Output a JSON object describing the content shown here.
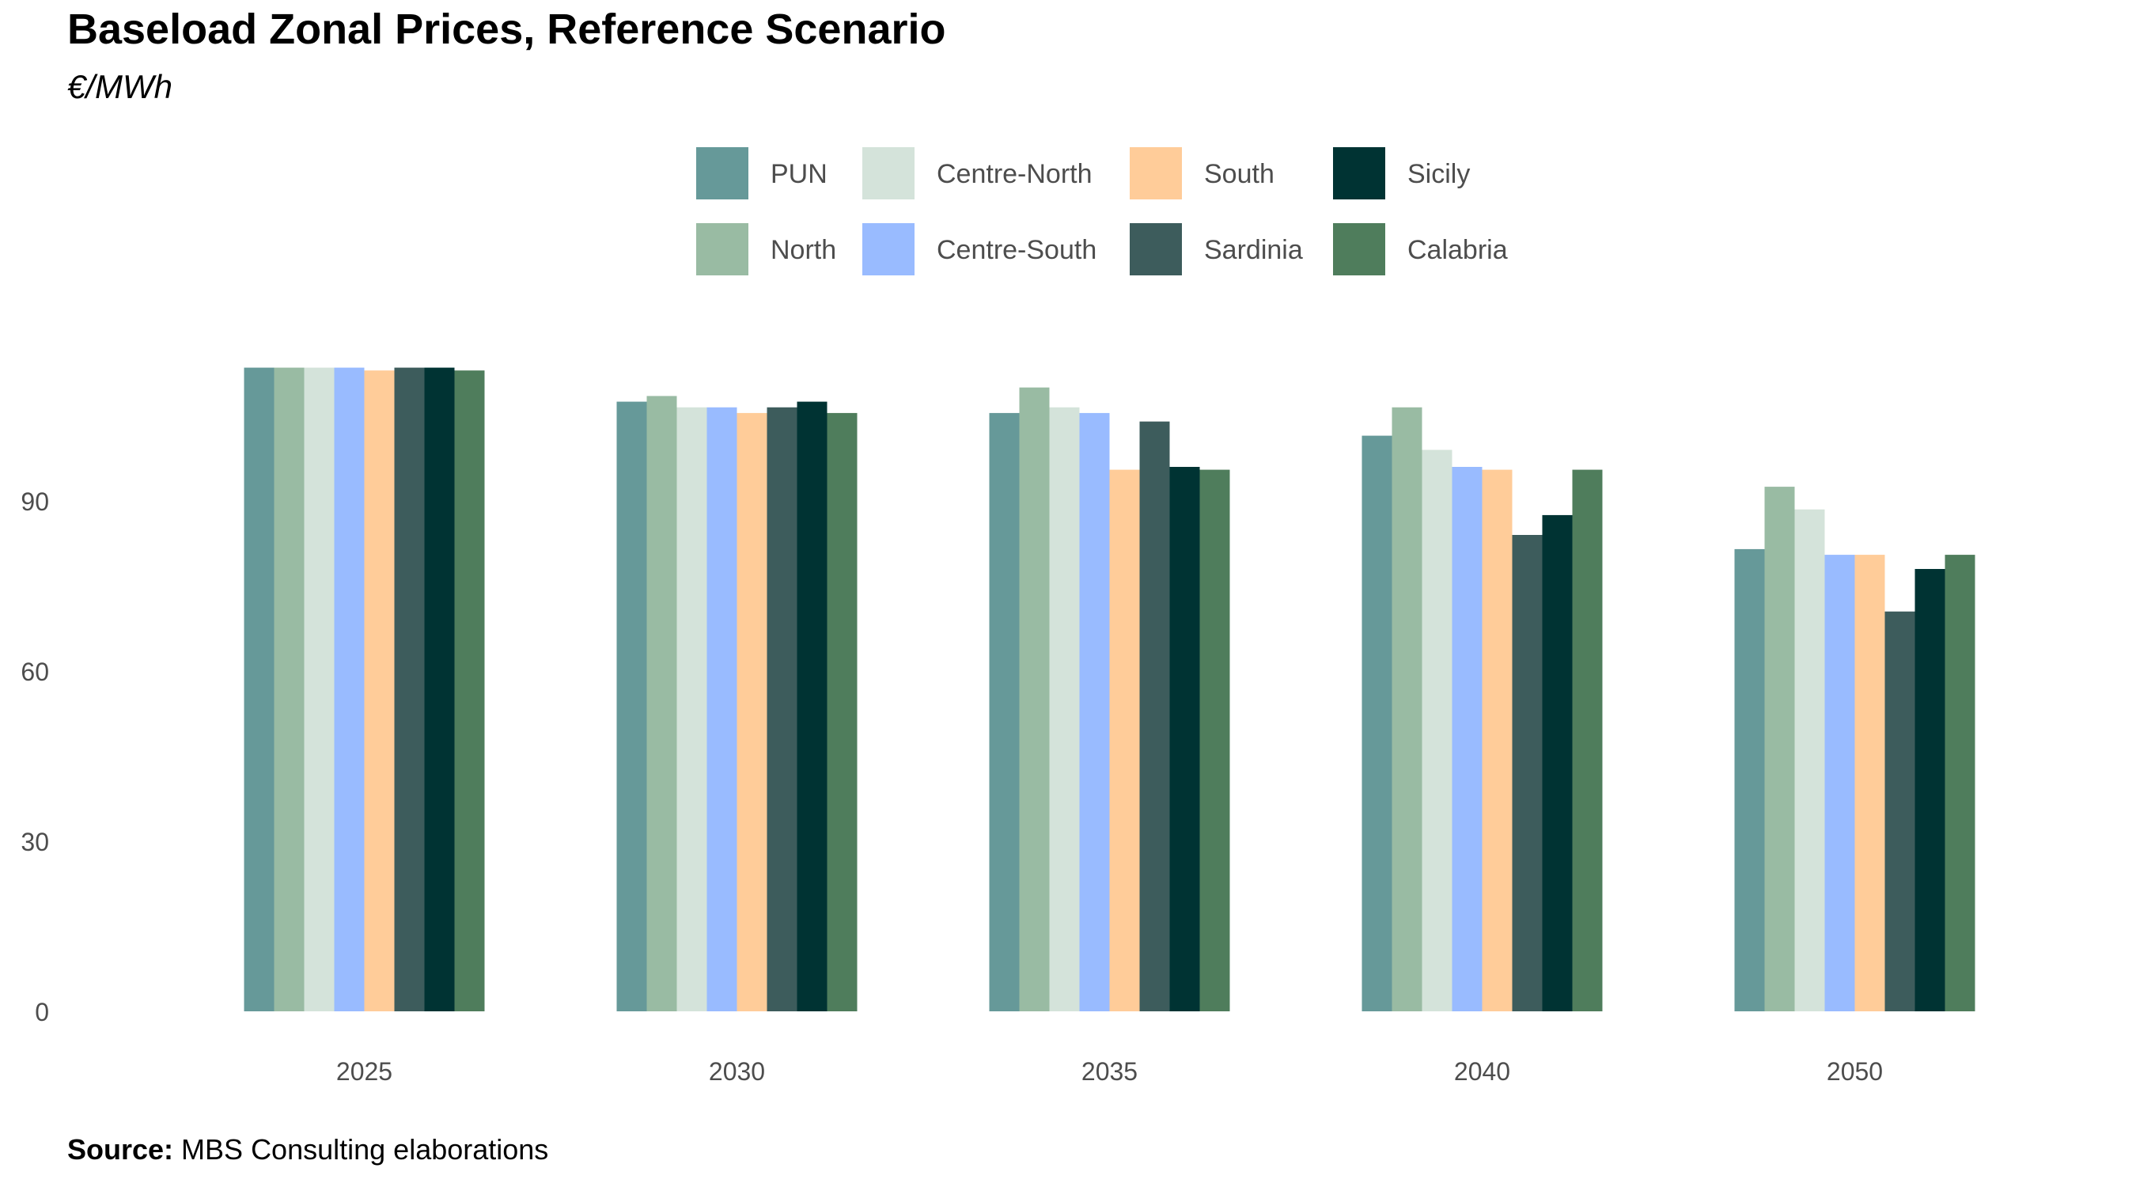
{
  "chart_data": {
    "type": "bar",
    "title": "Baseload Zonal Prices, Reference Scenario",
    "subtitle": "€/MWh",
    "caption_label": "Source:",
    "caption_text": " MBS Consulting elaborations",
    "xlabel": "",
    "ylabel": "",
    "categories": [
      "2025",
      "2030",
      "2035",
      "2040",
      "2050"
    ],
    "y_ticks": [
      "0",
      "30",
      "60",
      "90"
    ],
    "ylim": [
      0,
      120
    ],
    "grid": false,
    "legend_position": "top",
    "series": [
      {
        "name": "PUN",
        "color": "#669999",
        "values": [
          113.5,
          107.5,
          105.5,
          101.5,
          81.5
        ]
      },
      {
        "name": "North",
        "color": "#99BBA3",
        "values": [
          113.5,
          108.5,
          110.0,
          106.5,
          92.5
        ]
      },
      {
        "name": "Centre-North",
        "color": "#D4E3DA",
        "values": [
          113.5,
          106.5,
          106.5,
          99.0,
          88.5
        ]
      },
      {
        "name": "Centre-South",
        "color": "#99BBFF",
        "values": [
          113.5,
          106.5,
          105.5,
          96.0,
          80.5
        ]
      },
      {
        "name": "South",
        "color": "#FFCC99",
        "values": [
          113.0,
          105.5,
          95.5,
          95.5,
          80.5
        ]
      },
      {
        "name": "Sardinia",
        "color": "#3D5C5C",
        "values": [
          113.5,
          106.5,
          104.0,
          84.0,
          70.5
        ]
      },
      {
        "name": "Sicily",
        "color": "#003333",
        "values": [
          113.5,
          107.5,
          96.0,
          87.5,
          78.0
        ]
      },
      {
        "name": "Calabria",
        "color": "#4F7D5C",
        "values": [
          113.0,
          105.5,
          95.5,
          95.5,
          80.5
        ]
      }
    ],
    "legend_order": [
      "PUN",
      "Centre-North",
      "South",
      "Sicily",
      "North",
      "Centre-South",
      "Sardinia",
      "Calabria"
    ]
  }
}
